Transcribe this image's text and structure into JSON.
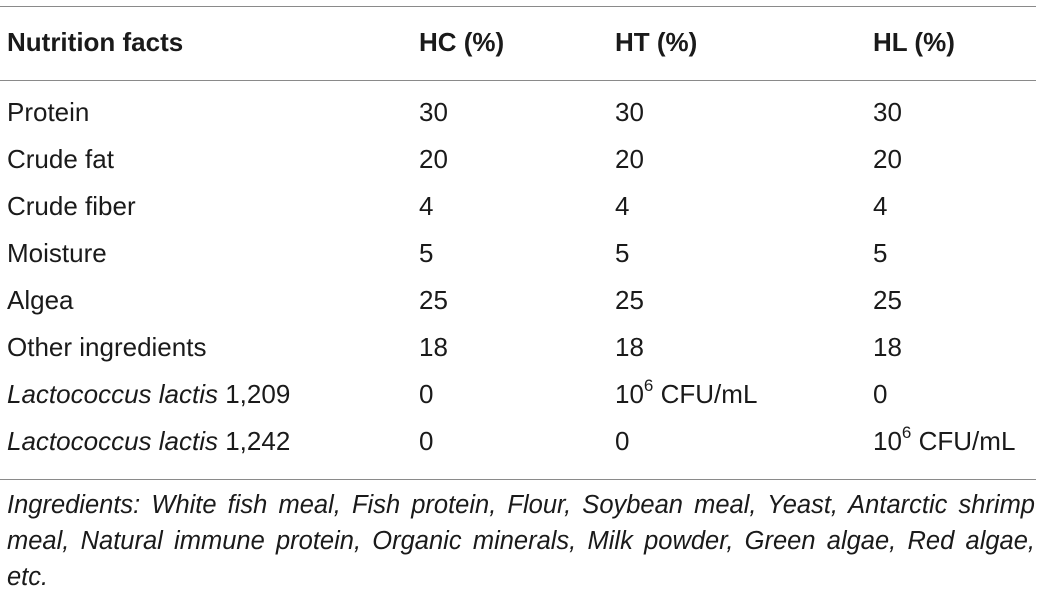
{
  "table": {
    "headers": [
      "Nutrition facts",
      "HC (%)",
      "HT (%)",
      "HL (%)"
    ],
    "rows": [
      {
        "label": "Protein",
        "hc": "30",
        "ht": "30",
        "hl": "30"
      },
      {
        "label": "Crude fat",
        "hc": "20",
        "ht": "20",
        "hl": "20"
      },
      {
        "label": "Crude fiber",
        "hc": "4",
        "ht": "4",
        "hl": "4"
      },
      {
        "label": "Moisture",
        "hc": "5",
        "ht": "5",
        "hl": "5"
      },
      {
        "label": "Algea",
        "hc": "25",
        "ht": "25",
        "hl": "25"
      },
      {
        "label": "Other ingredients",
        "hc": "18",
        "ht": "18",
        "hl": "18"
      },
      {
        "label_italic": "Lactococcus lactis",
        "label_suffix": "1,209",
        "hc": "0",
        "ht_base": "10",
        "ht_exp": "6",
        "ht_unit": "CFU/mL",
        "hl": "0"
      },
      {
        "label_italic": "Lactococcus lactis",
        "label_suffix": "1,242",
        "hc": "0",
        "ht": "0",
        "hl_base": "10",
        "hl_exp": "6",
        "hl_unit": "CFU/mL"
      }
    ]
  },
  "footnote": "Ingredients: White fish meal, Fish protein, Flour, Soybean meal, Yeast, Antarctic shrimp meal, Natural immune protein, Organic minerals, Milk powder, Green algae, Red algae, etc."
}
